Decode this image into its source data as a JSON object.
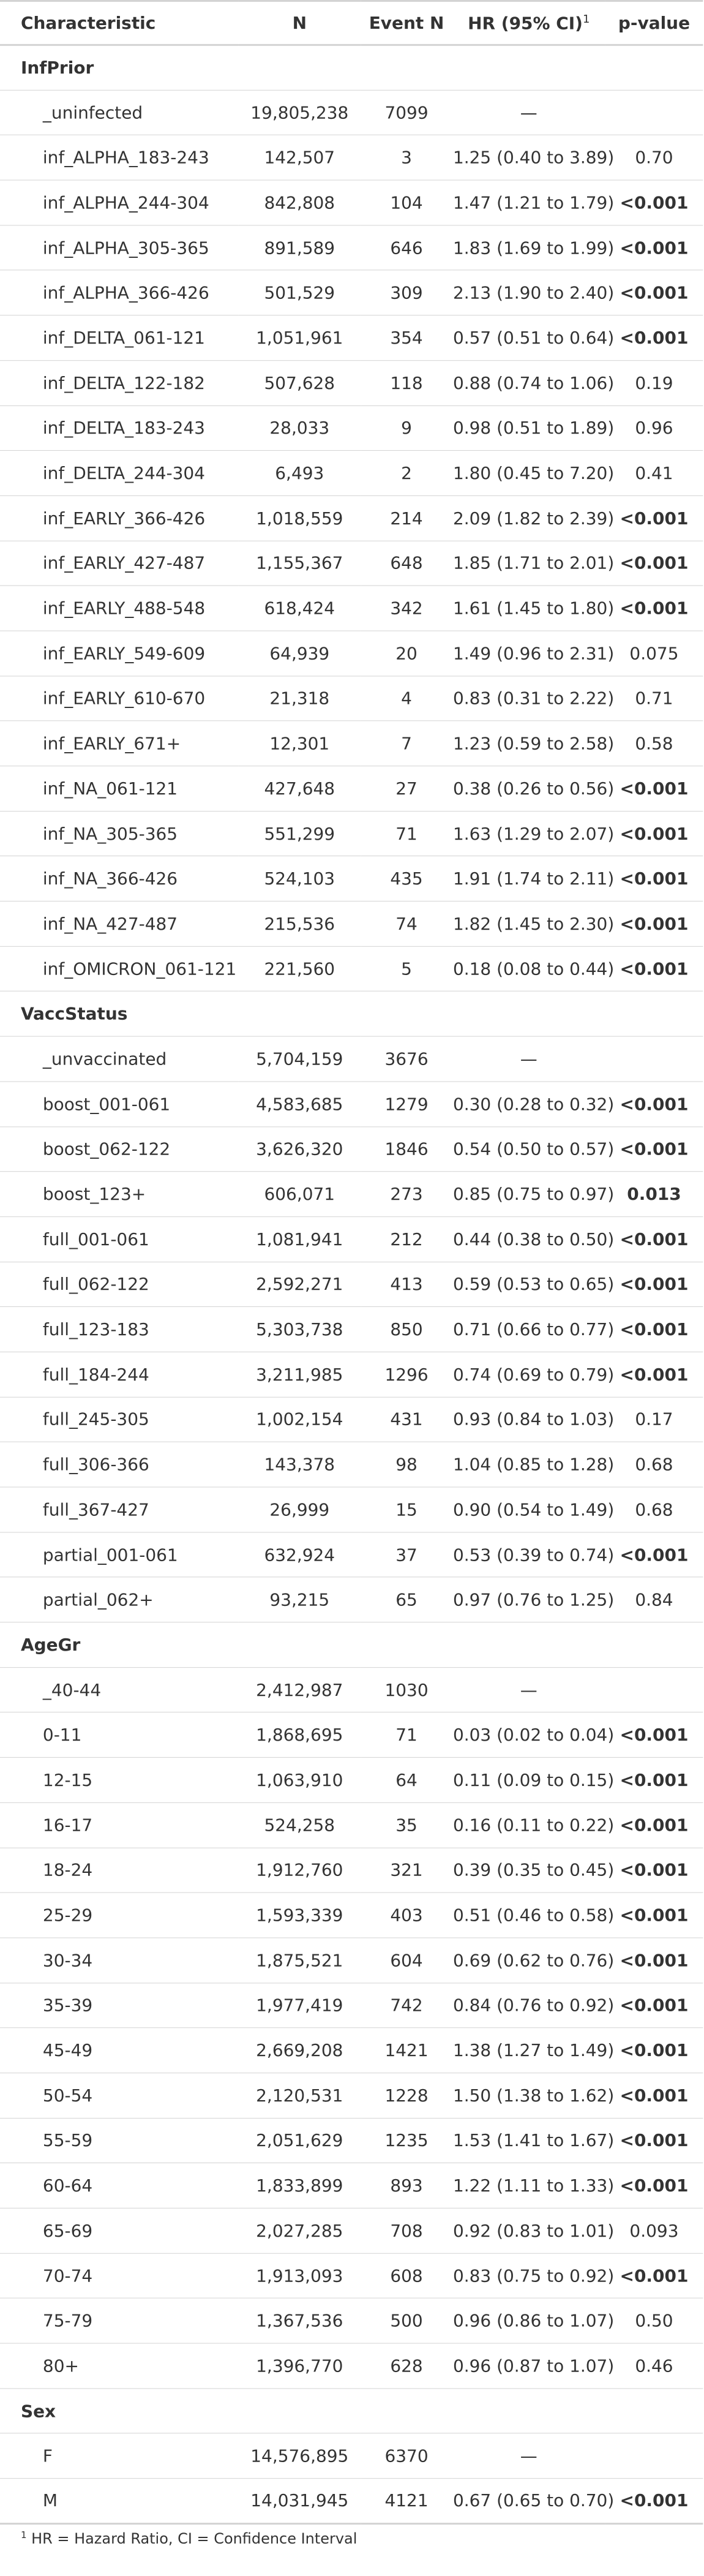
{
  "headers": {
    "characteristic": "Characteristic",
    "n": "N",
    "event_n": "Event N",
    "hr": "HR (95% CI)",
    "hr_footnote_mark": "1",
    "p_value": "p-value"
  },
  "footnote": {
    "mark": "1",
    "text": "HR = Hazard Ratio, CI = Confidence Interval"
  },
  "groups": [
    {
      "label": "InfPrior",
      "rows": [
        {
          "label": "_uninfected",
          "n": "19,805,238",
          "event_n": "7099",
          "hr": "—",
          "p": "",
          "p_bold": false
        },
        {
          "label": "inf_ALPHA_183-243",
          "n": "142,507",
          "event_n": "3",
          "hr": "1.25 (0.40 to 3.89)",
          "p": "0.70",
          "p_bold": false
        },
        {
          "label": "inf_ALPHA_244-304",
          "n": "842,808",
          "event_n": "104",
          "hr": "1.47 (1.21 to 1.79)",
          "p": "<0.001",
          "p_bold": true
        },
        {
          "label": "inf_ALPHA_305-365",
          "n": "891,589",
          "event_n": "646",
          "hr": "1.83 (1.69 to 1.99)",
          "p": "<0.001",
          "p_bold": true
        },
        {
          "label": "inf_ALPHA_366-426",
          "n": "501,529",
          "event_n": "309",
          "hr": "2.13 (1.90 to 2.40)",
          "p": "<0.001",
          "p_bold": true
        },
        {
          "label": "inf_DELTA_061-121",
          "n": "1,051,961",
          "event_n": "354",
          "hr": "0.57 (0.51 to 0.64)",
          "p": "<0.001",
          "p_bold": true
        },
        {
          "label": "inf_DELTA_122-182",
          "n": "507,628",
          "event_n": "118",
          "hr": "0.88 (0.74 to 1.06)",
          "p": "0.19",
          "p_bold": false
        },
        {
          "label": "inf_DELTA_183-243",
          "n": "28,033",
          "event_n": "9",
          "hr": "0.98 (0.51 to 1.89)",
          "p": "0.96",
          "p_bold": false
        },
        {
          "label": "inf_DELTA_244-304",
          "n": "6,493",
          "event_n": "2",
          "hr": "1.80 (0.45 to 7.20)",
          "p": "0.41",
          "p_bold": false
        },
        {
          "label": "inf_EARLY_366-426",
          "n": "1,018,559",
          "event_n": "214",
          "hr": "2.09 (1.82 to 2.39)",
          "p": "<0.001",
          "p_bold": true
        },
        {
          "label": "inf_EARLY_427-487",
          "n": "1,155,367",
          "event_n": "648",
          "hr": "1.85 (1.71 to 2.01)",
          "p": "<0.001",
          "p_bold": true
        },
        {
          "label": "inf_EARLY_488-548",
          "n": "618,424",
          "event_n": "342",
          "hr": "1.61 (1.45 to 1.80)",
          "p": "<0.001",
          "p_bold": true
        },
        {
          "label": "inf_EARLY_549-609",
          "n": "64,939",
          "event_n": "20",
          "hr": "1.49 (0.96 to 2.31)",
          "p": "0.075",
          "p_bold": false
        },
        {
          "label": "inf_EARLY_610-670",
          "n": "21,318",
          "event_n": "4",
          "hr": "0.83 (0.31 to 2.22)",
          "p": "0.71",
          "p_bold": false
        },
        {
          "label": "inf_EARLY_671+",
          "n": "12,301",
          "event_n": "7",
          "hr": "1.23 (0.59 to 2.58)",
          "p": "0.58",
          "p_bold": false
        },
        {
          "label": "inf_NA_061-121",
          "n": "427,648",
          "event_n": "27",
          "hr": "0.38 (0.26 to 0.56)",
          "p": "<0.001",
          "p_bold": true
        },
        {
          "label": "inf_NA_305-365",
          "n": "551,299",
          "event_n": "71",
          "hr": "1.63 (1.29 to 2.07)",
          "p": "<0.001",
          "p_bold": true
        },
        {
          "label": "inf_NA_366-426",
          "n": "524,103",
          "event_n": "435",
          "hr": "1.91 (1.74 to 2.11)",
          "p": "<0.001",
          "p_bold": true
        },
        {
          "label": "inf_NA_427-487",
          "n": "215,536",
          "event_n": "74",
          "hr": "1.82 (1.45 to 2.30)",
          "p": "<0.001",
          "p_bold": true
        },
        {
          "label": "inf_OMICRON_061-121",
          "n": "221,560",
          "event_n": "5",
          "hr": "0.18 (0.08 to 0.44)",
          "p": "<0.001",
          "p_bold": true
        }
      ]
    },
    {
      "label": "VaccStatus",
      "rows": [
        {
          "label": "_unvaccinated",
          "n": "5,704,159",
          "event_n": "3676",
          "hr": "—",
          "p": "",
          "p_bold": false
        },
        {
          "label": "boost_001-061",
          "n": "4,583,685",
          "event_n": "1279",
          "hr": "0.30 (0.28 to 0.32)",
          "p": "<0.001",
          "p_bold": true
        },
        {
          "label": "boost_062-122",
          "n": "3,626,320",
          "event_n": "1846",
          "hr": "0.54 (0.50 to 0.57)",
          "p": "<0.001",
          "p_bold": true
        },
        {
          "label": "boost_123+",
          "n": "606,071",
          "event_n": "273",
          "hr": "0.85 (0.75 to 0.97)",
          "p": "0.013",
          "p_bold": true
        },
        {
          "label": "full_001-061",
          "n": "1,081,941",
          "event_n": "212",
          "hr": "0.44 (0.38 to 0.50)",
          "p": "<0.001",
          "p_bold": true
        },
        {
          "label": "full_062-122",
          "n": "2,592,271",
          "event_n": "413",
          "hr": "0.59 (0.53 to 0.65)",
          "p": "<0.001",
          "p_bold": true
        },
        {
          "label": "full_123-183",
          "n": "5,303,738",
          "event_n": "850",
          "hr": "0.71 (0.66 to 0.77)",
          "p": "<0.001",
          "p_bold": true
        },
        {
          "label": "full_184-244",
          "n": "3,211,985",
          "event_n": "1296",
          "hr": "0.74 (0.69 to 0.79)",
          "p": "<0.001",
          "p_bold": true
        },
        {
          "label": "full_245-305",
          "n": "1,002,154",
          "event_n": "431",
          "hr": "0.93 (0.84 to 1.03)",
          "p": "0.17",
          "p_bold": false
        },
        {
          "label": "full_306-366",
          "n": "143,378",
          "event_n": "98",
          "hr": "1.04 (0.85 to 1.28)",
          "p": "0.68",
          "p_bold": false
        },
        {
          "label": "full_367-427",
          "n": "26,999",
          "event_n": "15",
          "hr": "0.90 (0.54 to 1.49)",
          "p": "0.68",
          "p_bold": false
        },
        {
          "label": "partial_001-061",
          "n": "632,924",
          "event_n": "37",
          "hr": "0.53 (0.39 to 0.74)",
          "p": "<0.001",
          "p_bold": true
        },
        {
          "label": "partial_062+",
          "n": "93,215",
          "event_n": "65",
          "hr": "0.97 (0.76 to 1.25)",
          "p": "0.84",
          "p_bold": false
        }
      ]
    },
    {
      "label": "AgeGr",
      "rows": [
        {
          "label": "_40-44",
          "n": "2,412,987",
          "event_n": "1030",
          "hr": "—",
          "p": "",
          "p_bold": false
        },
        {
          "label": "0-11",
          "n": "1,868,695",
          "event_n": "71",
          "hr": "0.03 (0.02 to 0.04)",
          "p": "<0.001",
          "p_bold": true
        },
        {
          "label": "12-15",
          "n": "1,063,910",
          "event_n": "64",
          "hr": "0.11 (0.09 to 0.15)",
          "p": "<0.001",
          "p_bold": true
        },
        {
          "label": "16-17",
          "n": "524,258",
          "event_n": "35",
          "hr": "0.16 (0.11 to 0.22)",
          "p": "<0.001",
          "p_bold": true
        },
        {
          "label": "18-24",
          "n": "1,912,760",
          "event_n": "321",
          "hr": "0.39 (0.35 to 0.45)",
          "p": "<0.001",
          "p_bold": true
        },
        {
          "label": "25-29",
          "n": "1,593,339",
          "event_n": "403",
          "hr": "0.51 (0.46 to 0.58)",
          "p": "<0.001",
          "p_bold": true
        },
        {
          "label": "30-34",
          "n": "1,875,521",
          "event_n": "604",
          "hr": "0.69 (0.62 to 0.76)",
          "p": "<0.001",
          "p_bold": true
        },
        {
          "label": "35-39",
          "n": "1,977,419",
          "event_n": "742",
          "hr": "0.84 (0.76 to 0.92)",
          "p": "<0.001",
          "p_bold": true
        },
        {
          "label": "45-49",
          "n": "2,669,208",
          "event_n": "1421",
          "hr": "1.38 (1.27 to 1.49)",
          "p": "<0.001",
          "p_bold": true
        },
        {
          "label": "50-54",
          "n": "2,120,531",
          "event_n": "1228",
          "hr": "1.50 (1.38 to 1.62)",
          "p": "<0.001",
          "p_bold": true
        },
        {
          "label": "55-59",
          "n": "2,051,629",
          "event_n": "1235",
          "hr": "1.53 (1.41 to 1.67)",
          "p": "<0.001",
          "p_bold": true
        },
        {
          "label": "60-64",
          "n": "1,833,899",
          "event_n": "893",
          "hr": "1.22 (1.11 to 1.33)",
          "p": "<0.001",
          "p_bold": true
        },
        {
          "label": "65-69",
          "n": "2,027,285",
          "event_n": "708",
          "hr": "0.92 (0.83 to 1.01)",
          "p": "0.093",
          "p_bold": false
        },
        {
          "label": "70-74",
          "n": "1,913,093",
          "event_n": "608",
          "hr": "0.83 (0.75 to 0.92)",
          "p": "<0.001",
          "p_bold": true
        },
        {
          "label": "75-79",
          "n": "1,367,536",
          "event_n": "500",
          "hr": "0.96 (0.86 to 1.07)",
          "p": "0.50",
          "p_bold": false
        },
        {
          "label": "80+",
          "n": "1,396,770",
          "event_n": "628",
          "hr": "0.96 (0.87 to 1.07)",
          "p": "0.46",
          "p_bold": false
        }
      ]
    },
    {
      "label": "Sex",
      "rows": [
        {
          "label": "F",
          "n": "14,576,895",
          "event_n": "6370",
          "hr": "—",
          "p": "",
          "p_bold": false
        },
        {
          "label": "M",
          "n": "14,031,945",
          "event_n": "4121",
          "hr": "0.67 (0.65 to 0.70)",
          "p": "<0.001",
          "p_bold": true
        }
      ]
    }
  ]
}
